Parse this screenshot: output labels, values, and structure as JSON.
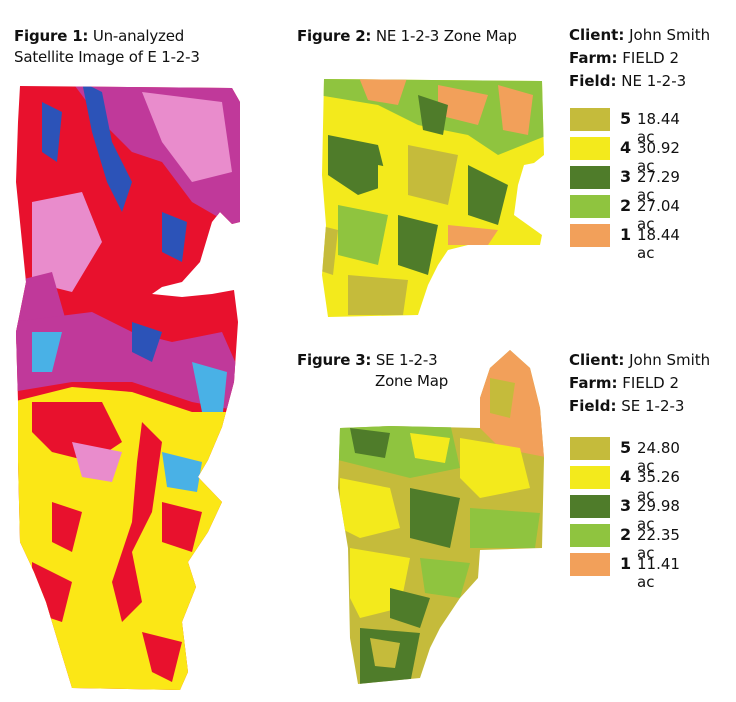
{
  "colors": {
    "zone5": "#c5bb3b",
    "zone4": "#f3ea1c",
    "zone3": "#4f7c2a",
    "zone2": "#8fc43f",
    "zone1": "#f2a05a",
    "sat_red": "#e8112d",
    "sat_magenta": "#c0399a",
    "sat_pink": "#e98ccc",
    "sat_blue": "#2c53b8",
    "sat_cyan": "#49b1e6",
    "sat_yellow": "#fbe716"
  },
  "figure1": {
    "label": "Figure 1:",
    "title_line1": "Un-analyzed",
    "title_line2": "Satellite Image of E 1-2-3"
  },
  "figure2": {
    "label": "Figure 2:",
    "title": "NE 1-2-3 Zone Map",
    "client_label": "Client:",
    "client": "John Smith",
    "farm_label": "Farm:",
    "farm": "FIELD 2",
    "field_label": "Field:",
    "field": "NE 1-2-3",
    "legend": [
      {
        "zone": "5",
        "area": "18.44 ac",
        "color": "#c5bb3b"
      },
      {
        "zone": "4",
        "area": "30.92 ac",
        "color": "#f3ea1c"
      },
      {
        "zone": "3",
        "area": "27.29 ac",
        "color": "#4f7c2a"
      },
      {
        "zone": "2",
        "area": "27.04 ac",
        "color": "#8fc43f"
      },
      {
        "zone": "1",
        "area": "18.44 ac",
        "color": "#f2a05a"
      }
    ]
  },
  "figure3": {
    "label": "Figure 3:",
    "title_line1": "SE 1-2-3",
    "title_line2": "Zone Map",
    "client_label": "Client:",
    "client": "John Smith",
    "farm_label": "Farm:",
    "farm": "FIELD 2",
    "field_label": "Field:",
    "field": "SE 1-2-3",
    "legend": [
      {
        "zone": "5",
        "area": "24.80 ac",
        "color": "#c5bb3b"
      },
      {
        "zone": "4",
        "area": "35.26 ac",
        "color": "#f3ea1c"
      },
      {
        "zone": "3",
        "area": "29.98 ac",
        "color": "#4f7c2a"
      },
      {
        "zone": "2",
        "area": "22.35 ac",
        "color": "#8fc43f"
      },
      {
        "zone": "1",
        "area": "11.41 ac",
        "color": "#f2a05a"
      }
    ]
  }
}
